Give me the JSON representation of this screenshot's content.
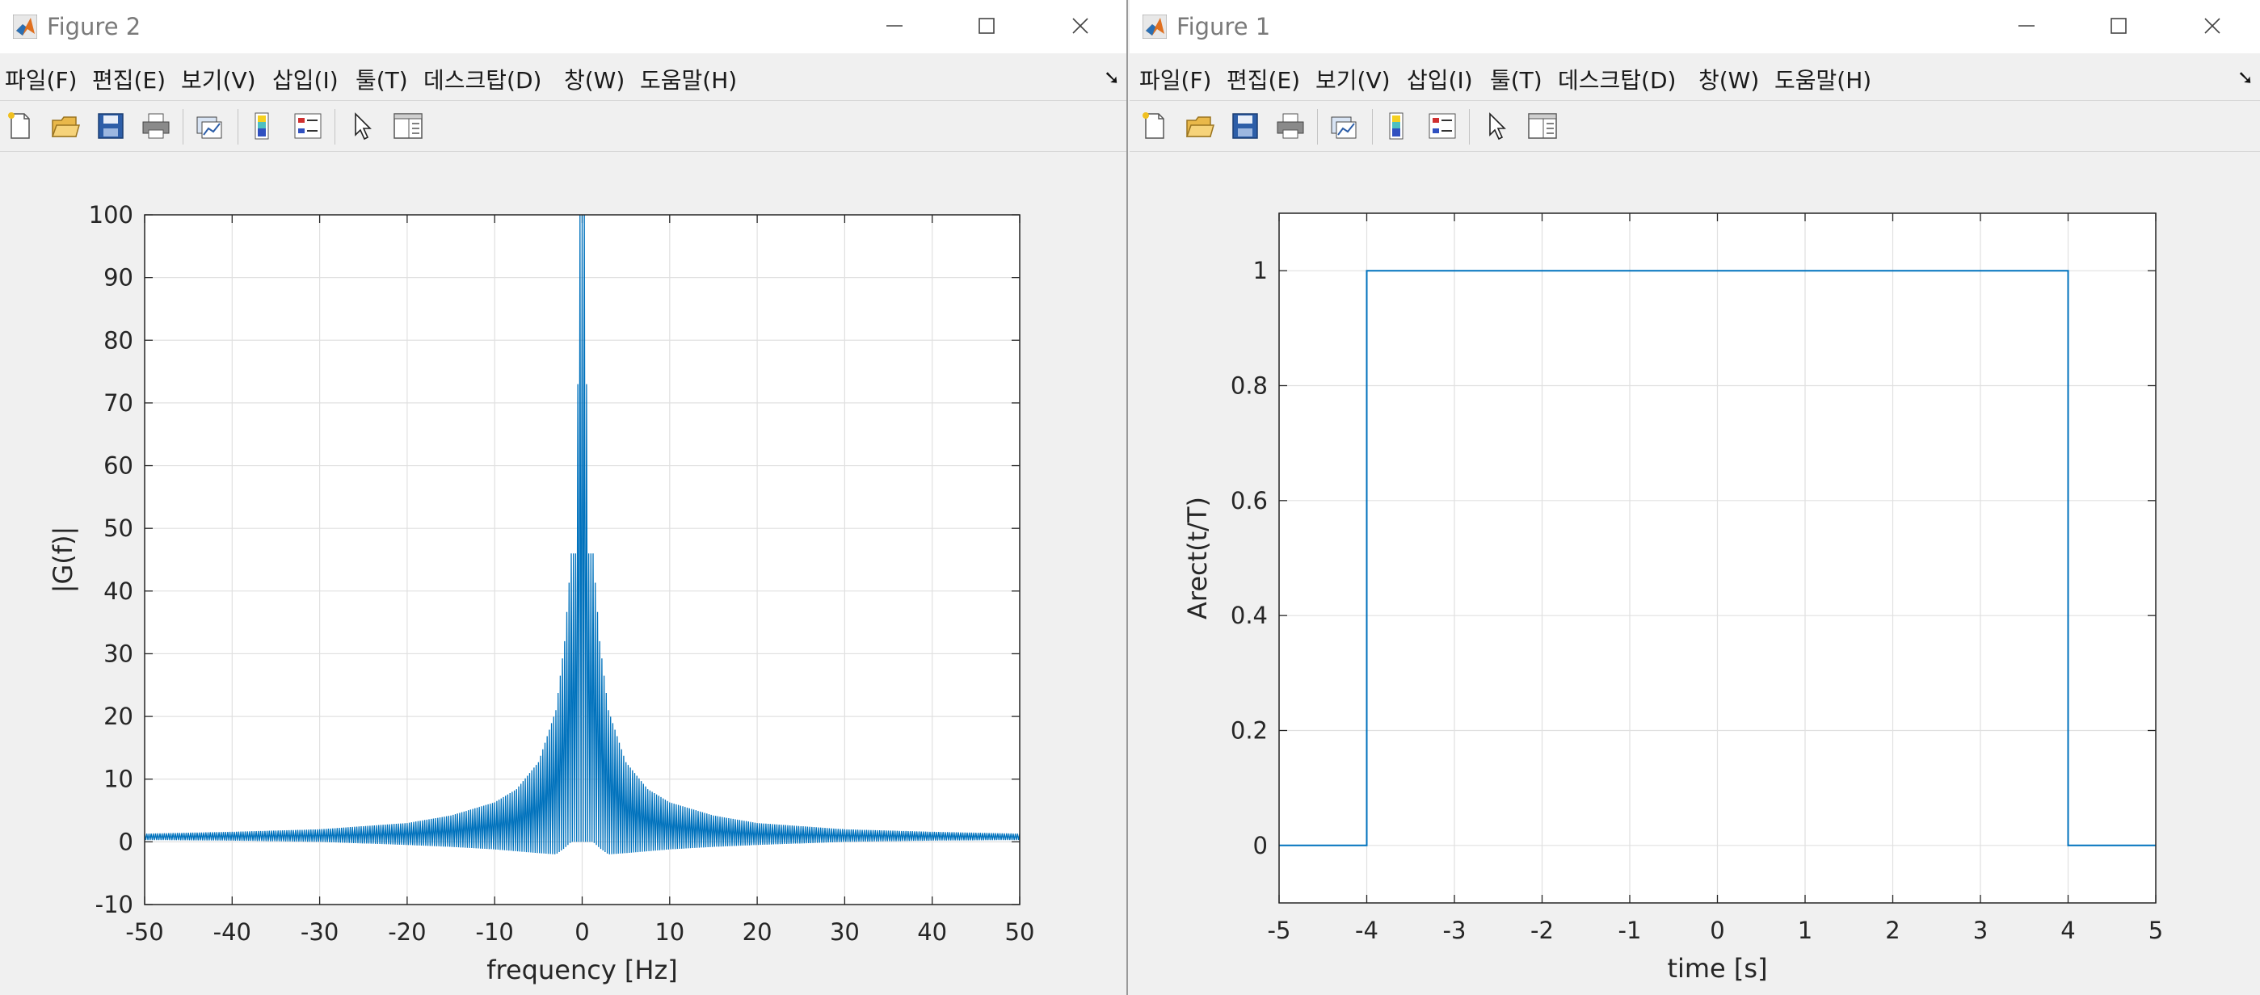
{
  "windows": [
    {
      "id": "win2",
      "title": "Figure 2",
      "menu": [
        "파일(F)",
        "편집(E)",
        "보기(V)",
        "삽입(I)",
        "툴(T)",
        "데스크탑(D)",
        "창(W)",
        "도움말(H)"
      ],
      "toolbar_icons": [
        "new-figure-icon",
        "open-file-icon",
        "save-icon",
        "print-icon",
        "link-plot-icon",
        "insert-colorbar-icon",
        "insert-legend-icon",
        "edit-plot-icon",
        "property-inspector-icon"
      ]
    },
    {
      "id": "win1",
      "title": "Figure 1",
      "menu": [
        "파일(F)",
        "편집(E)",
        "보기(V)",
        "삽입(I)",
        "툴(T)",
        "데스크탑(D)",
        "창(W)",
        "도움말(H)"
      ],
      "toolbar_icons": [
        "new-figure-icon",
        "open-file-icon",
        "save-icon",
        "print-icon",
        "link-plot-icon",
        "insert-colorbar-icon",
        "insert-legend-icon",
        "edit-plot-icon",
        "property-inspector-icon"
      ]
    }
  ],
  "colors": {
    "line": "#0072bd",
    "grid": "#e0e0e0",
    "axes_bg": "#ffffff",
    "titlebar_text": "#7a7a7a"
  },
  "chart_data": [
    {
      "window": "Figure 2",
      "type": "line",
      "title": "",
      "xlabel": "frequency [Hz]",
      "ylabel": "|G(f)|",
      "xlim": [
        -50,
        50
      ],
      "ylim": [
        -10,
        100
      ],
      "xticks": [
        -50,
        -40,
        -30,
        -20,
        -10,
        0,
        10,
        20,
        30,
        40,
        50
      ],
      "yticks": [
        -10,
        0,
        10,
        20,
        30,
        40,
        50,
        60,
        70,
        80,
        90,
        100
      ],
      "grid": true,
      "series": [
        {
          "description_source": "magnitude spectrum of rectangular pulse, sampled",
          "x": [
            -50,
            -40,
            -30,
            -20,
            -15,
            -10,
            -7.5,
            -5,
            -3,
            -2,
            -1.25,
            -0.75,
            -0.25,
            0,
            0.25,
            0.75,
            1.25,
            2,
            3,
            5,
            7.5,
            10,
            15,
            20,
            30,
            40,
            50
          ],
          "envelope_max": [
            1.3,
            1.6,
            2.0,
            3.0,
            4.2,
            6.3,
            8.4,
            12.7,
            21,
            32,
            46,
            46,
            100,
            100,
            100,
            46,
            46,
            32,
            21,
            12.7,
            8.4,
            6.3,
            4.2,
            3.0,
            2.0,
            1.6,
            1.3
          ],
          "envelope_min": [
            0.3,
            0.2,
            0,
            -0.5,
            -0.8,
            -1.2,
            -1.5,
            -1.8,
            -2,
            -1,
            0,
            0,
            0,
            0,
            0,
            0,
            0,
            -1,
            -2,
            -1.8,
            -1.5,
            -1.2,
            -0.8,
            -0.5,
            0,
            0.2,
            0.3
          ]
        }
      ]
    },
    {
      "window": "Figure 1",
      "type": "line",
      "title": "",
      "xlabel": "time [s]",
      "ylabel": "Arect(t/T)",
      "xlim": [
        -5,
        5
      ],
      "ylim": [
        -0.1,
        1.1
      ],
      "xticks": [
        -5,
        -4,
        -3,
        -2,
        -1,
        0,
        1,
        2,
        3,
        4,
        5
      ],
      "yticks": [
        0,
        0.2,
        0.4,
        0.6,
        0.8,
        1
      ],
      "grid": true,
      "series": [
        {
          "x": [
            -5,
            -4,
            -4,
            4,
            4,
            5
          ],
          "y": [
            0,
            0,
            1,
            1,
            0,
            0
          ]
        }
      ]
    }
  ]
}
